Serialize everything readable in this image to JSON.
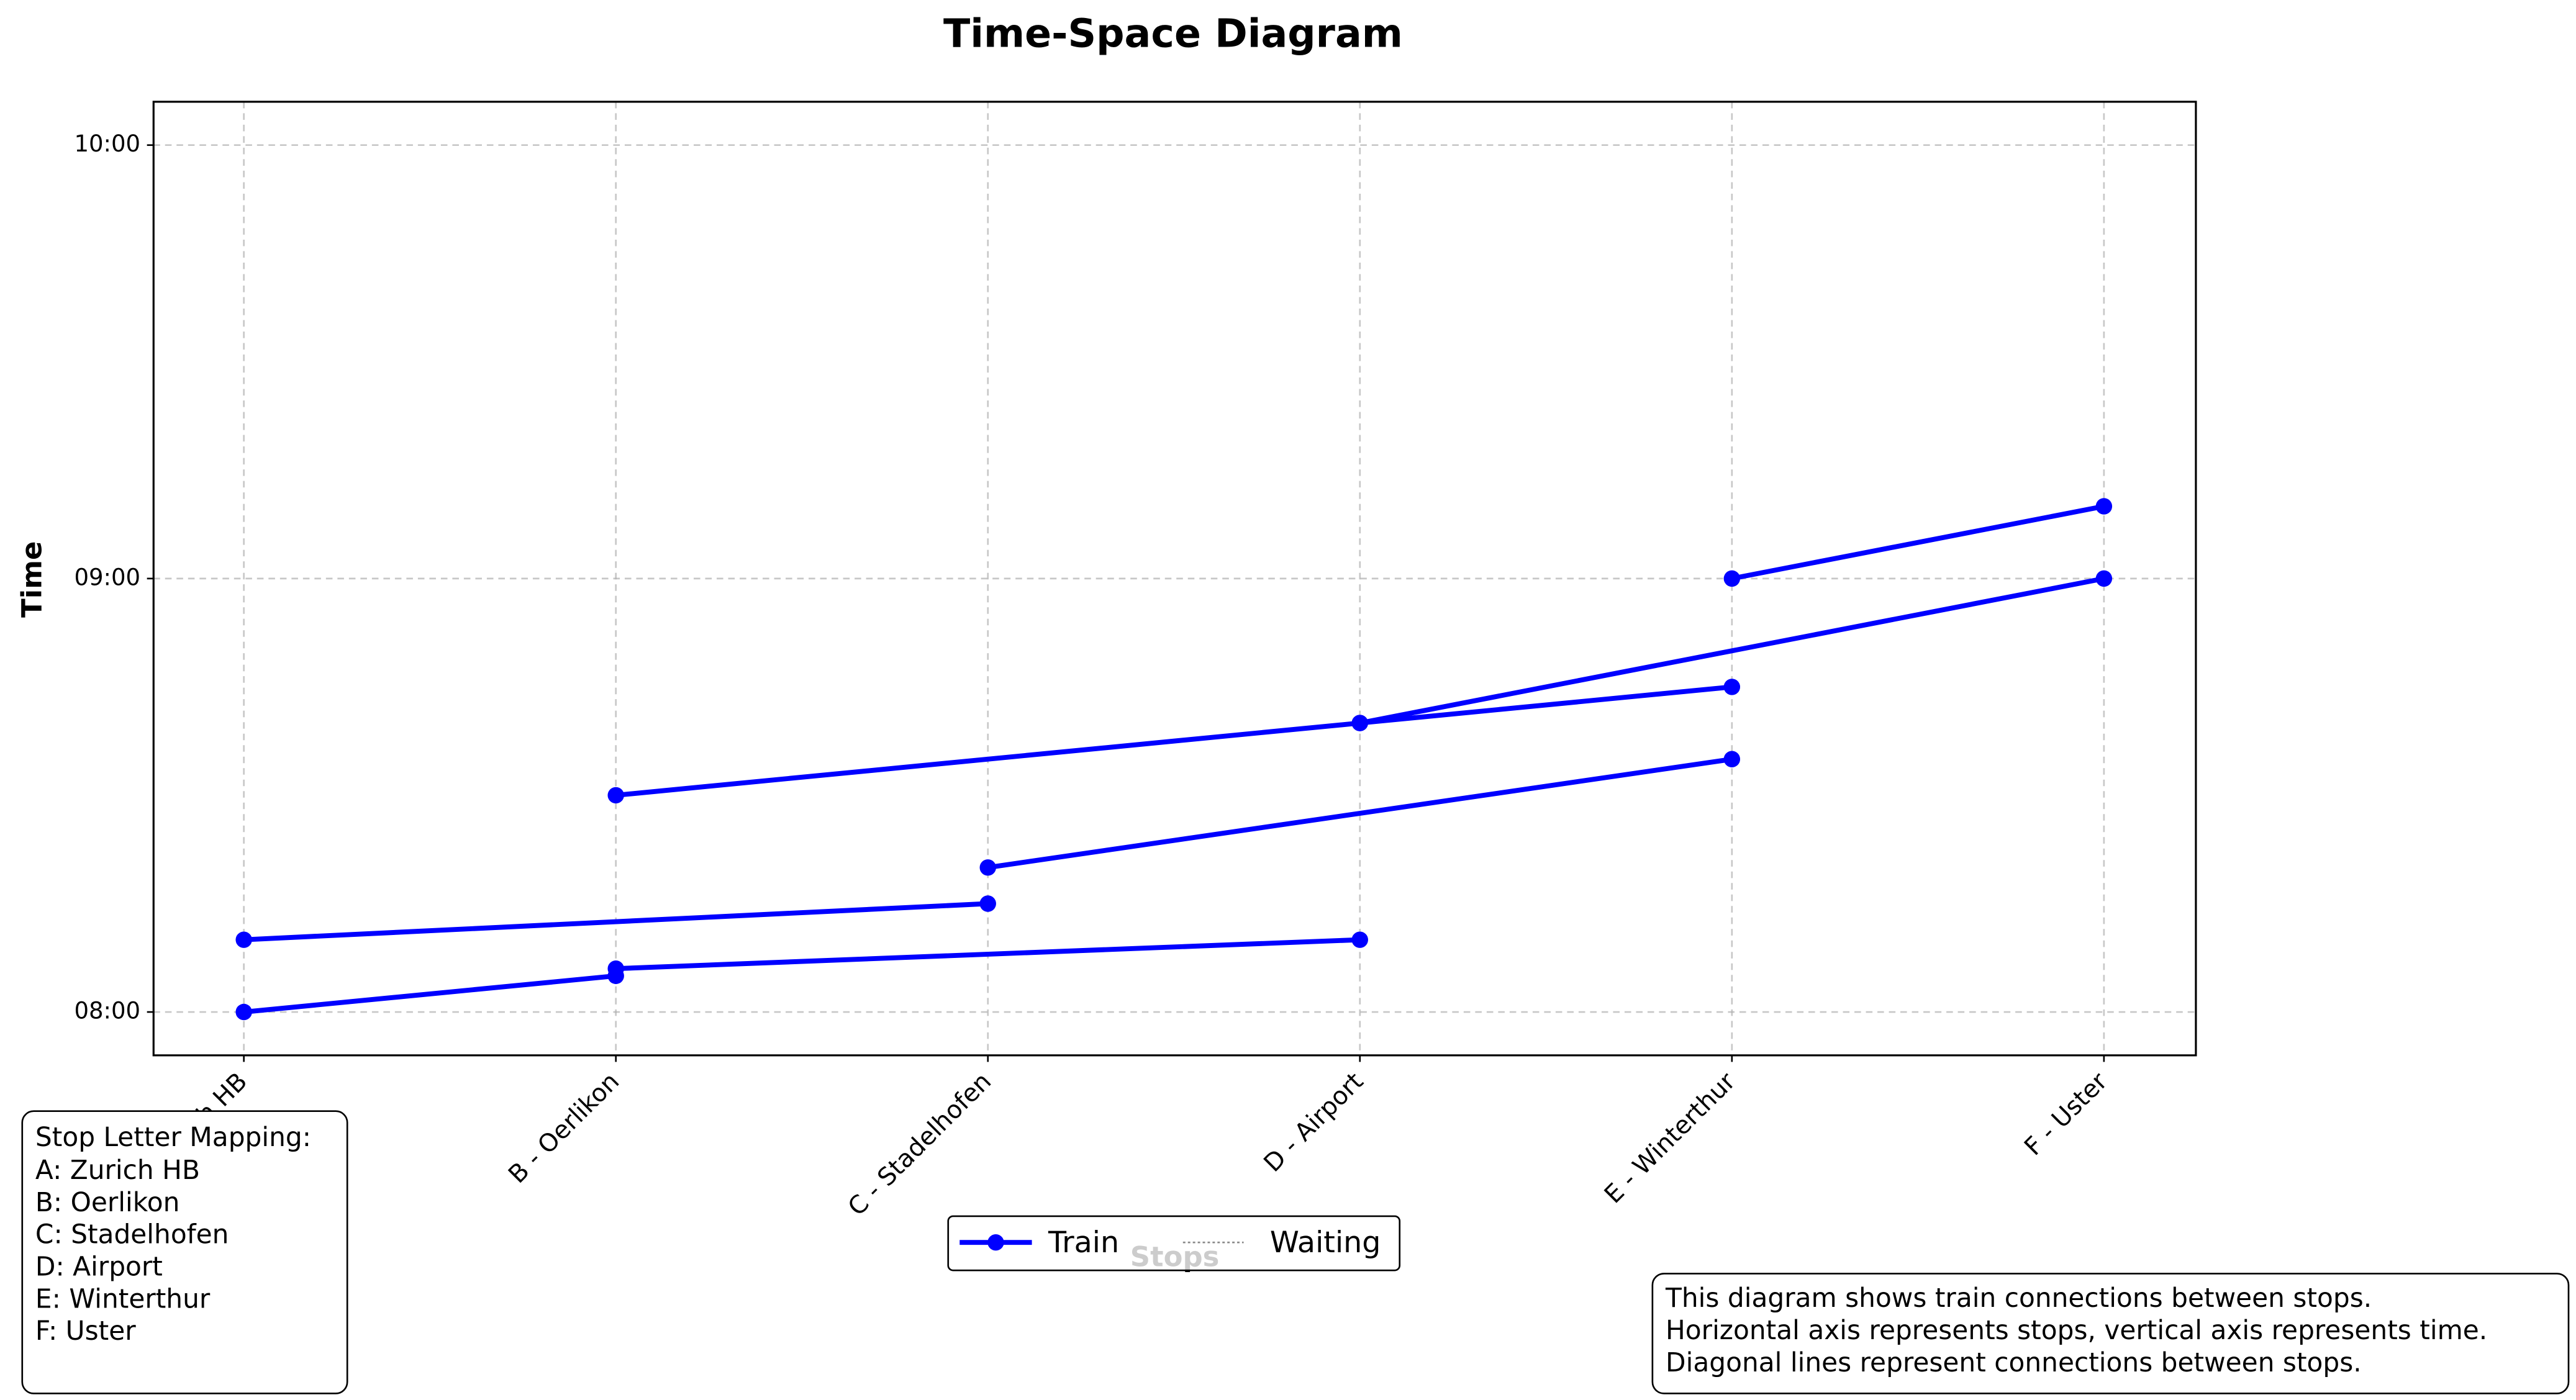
{
  "chart_data": {
    "type": "line",
    "title": "Time-Space Diagram",
    "x_label": "Stops",
    "y_label": "Time",
    "categories": [
      "A - Zurich HB",
      "B - Oerlikon",
      "C - Stadelhofen",
      "D - Airport",
      "E - Winterthur",
      "F - Uster"
    ],
    "ylim": [
      474,
      606
    ],
    "yticks": [
      {
        "value": 480,
        "label": "08:00"
      },
      {
        "value": 540,
        "label": "09:00"
      },
      {
        "value": 600,
        "label": "10:00"
      }
    ],
    "grid": true,
    "color": "#0000ff",
    "series": [
      {
        "x": [
          0,
          1
        ],
        "values": [
          480,
          485
        ]
      },
      {
        "x": [
          1,
          3
        ],
        "values": [
          486,
          490
        ]
      },
      {
        "x": [
          0,
          2
        ],
        "values": [
          490,
          495
        ]
      },
      {
        "x": [
          2,
          4
        ],
        "values": [
          500,
          515
        ]
      },
      {
        "x": [
          1,
          3
        ],
        "values": [
          510,
          520
        ]
      },
      {
        "x": [
          3,
          4
        ],
        "values": [
          520,
          525
        ]
      },
      {
        "x": [
          3,
          5
        ],
        "values": [
          520,
          540
        ]
      },
      {
        "x": [
          4,
          5
        ],
        "values": [
          540,
          550
        ]
      }
    ],
    "legend": [
      {
        "name": "Train",
        "color": "#0000ff"
      },
      {
        "name": "Waiting",
        "color": "#888888"
      }
    ],
    "legend_position": "lower center",
    "mapping": {
      "title": "Stop Letter Mapping:",
      "lines": [
        "A: Zurich HB",
        "B: Oerlikon",
        "C: Stadelhofen",
        "D: Airport",
        "E: Winterthur",
        "F: Uster"
      ]
    },
    "note": [
      "This diagram shows train connections between stops.",
      "Horizontal axis represents stops, vertical axis represents time.",
      "Diagonal lines represent connections between stops."
    ]
  }
}
